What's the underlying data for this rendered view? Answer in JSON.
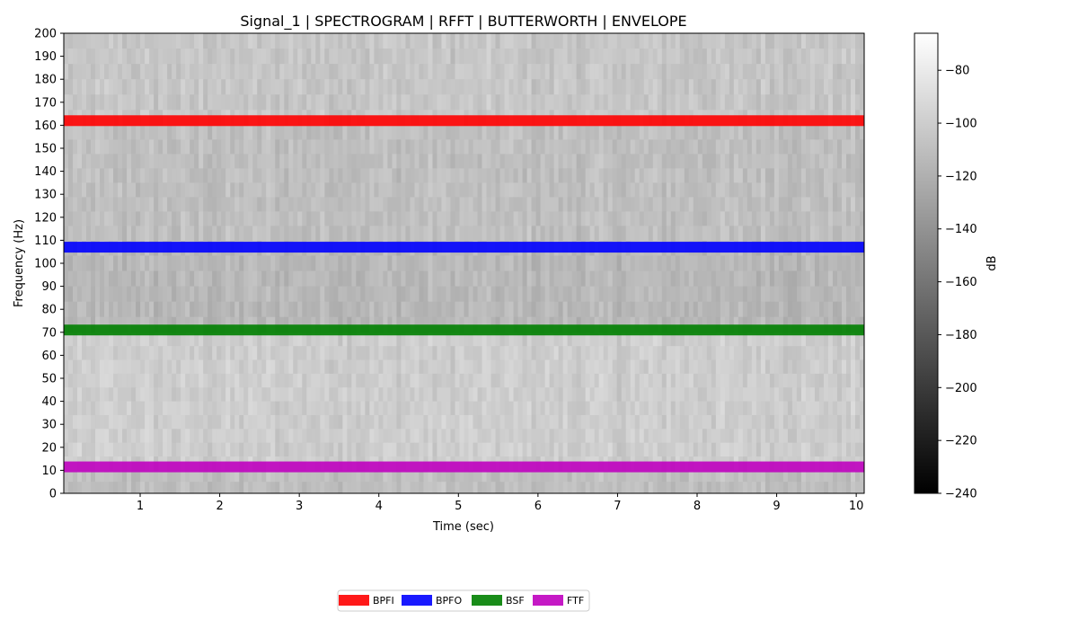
{
  "chart_data": [
    {
      "type": "heatmap",
      "title": "Signal_1 | SPECTROGRAM  | RFFT | BUTTERWORTH | ENVELOPE",
      "xlabel": "Time (sec)",
      "ylabel": "Frequency (Hz)",
      "xlim": [
        0.04,
        10.1
      ],
      "ylim": [
        0,
        200
      ],
      "x_ticks": [
        1,
        2,
        3,
        4,
        5,
        6,
        7,
        8,
        9,
        10
      ],
      "y_ticks": [
        0,
        10,
        20,
        30,
        40,
        50,
        60,
        70,
        80,
        90,
        100,
        110,
        120,
        130,
        140,
        150,
        160,
        170,
        180,
        190,
        200
      ],
      "colormap": "gray",
      "colorbar": {
        "label": "dB",
        "range": [
          -240,
          -66
        ],
        "ticks": [
          -80,
          -100,
          -120,
          -140,
          -160,
          -180,
          -200,
          -220,
          -240
        ]
      },
      "spectrogram_level_db_by_band": [
        {
          "freq_range": [
            0,
            10
          ],
          "level_db": -110
        },
        {
          "freq_range": [
            10,
            70
          ],
          "level_db": -100
        },
        {
          "freq_range": [
            70,
            110
          ],
          "level_db": -115
        },
        {
          "freq_range": [
            110,
            160
          ],
          "level_db": -110
        },
        {
          "freq_range": [
            160,
            200
          ],
          "level_db": -105
        }
      ],
      "fault_frequency_lines": [
        {
          "name": "BPFI",
          "frequency": 162,
          "color": "#ff0000"
        },
        {
          "name": "BPFO",
          "frequency": 107,
          "color": "#0000ff"
        },
        {
          "name": "BSF",
          "frequency": 71,
          "color": "#008000"
        },
        {
          "name": "FTF",
          "frequency": 11.5,
          "color": "#bf00bf"
        }
      ],
      "legend": {
        "placement": "bottom-center",
        "entries": [
          "BPFI",
          "BPFO",
          "BSF",
          "FTF"
        ]
      }
    }
  ]
}
